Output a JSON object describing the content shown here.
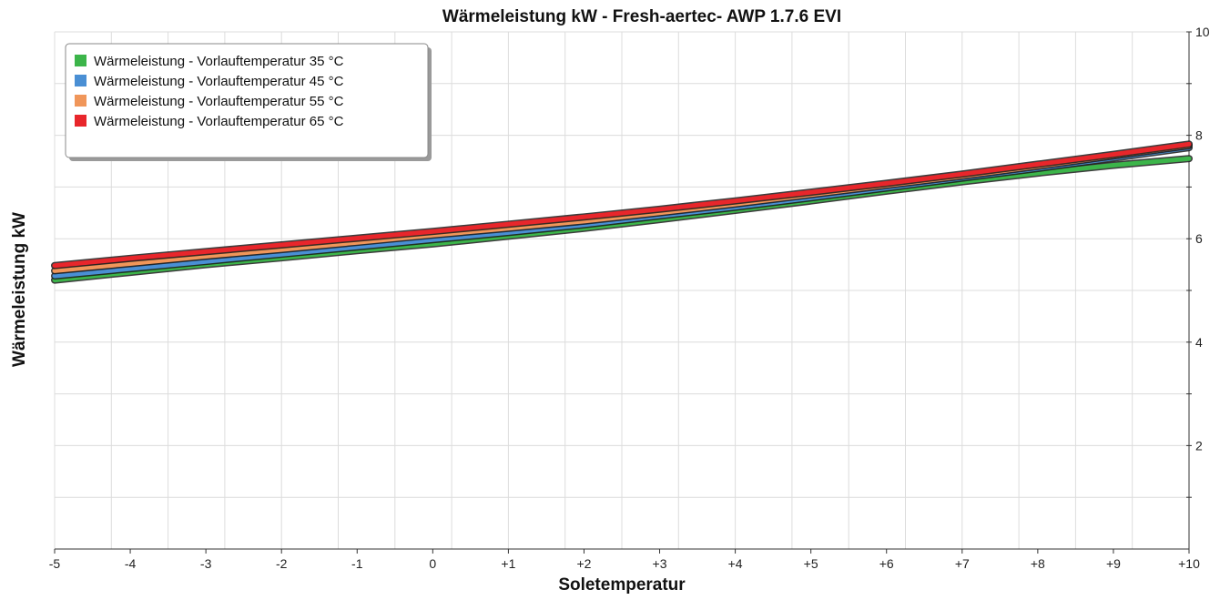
{
  "chart_data": {
    "type": "line",
    "title": "Wärmeleistung kW - Fresh-aertec- AWP 1.7.6 EVI",
    "xlabel": "Soletemperatur",
    "ylabel": "Wärmeleistung kW",
    "x": [
      -5,
      -4,
      -3,
      -2,
      -1,
      0,
      1,
      2,
      3,
      4,
      5,
      6,
      7,
      8,
      9,
      10
    ],
    "x_tick_labels": [
      "-5",
      "-4",
      "-3",
      "-2",
      "-1",
      "0",
      "+1",
      "+2",
      "+3",
      "+4",
      "+5",
      "+6",
      "+7",
      "+8",
      "+9",
      "+10"
    ],
    "xlim": [
      -5,
      10
    ],
    "ylim": [
      0,
      10
    ],
    "y_ticks": [
      2,
      4,
      6,
      8,
      10
    ],
    "y_tick_labels": [
      "2",
      "4",
      "6",
      "8",
      "10"
    ],
    "y_axis_side": "right",
    "grid": true,
    "legend_position": "top-left",
    "series": [
      {
        "name": "Wärmeleistung - Vorlauftemperatur 35 °C",
        "color": "#3cb54a",
        "values": [
          5.2,
          5.35,
          5.5,
          5.63,
          5.77,
          5.9,
          6.05,
          6.2,
          6.37,
          6.55,
          6.73,
          6.92,
          7.1,
          7.27,
          7.42,
          7.55
        ]
      },
      {
        "name": "Wärmeleistung - Vorlauftemperatur 45 °C",
        "color": "#4a8fd4",
        "values": [
          5.28,
          5.42,
          5.56,
          5.7,
          5.84,
          5.98,
          6.12,
          6.27,
          6.44,
          6.61,
          6.79,
          6.98,
          7.17,
          7.36,
          7.56,
          7.76
        ]
      },
      {
        "name": "Wärmeleistung - Vorlauftemperatur 55 °C",
        "color": "#f0965a",
        "values": [
          5.38,
          5.52,
          5.66,
          5.79,
          5.93,
          6.07,
          6.2,
          6.34,
          6.5,
          6.67,
          6.85,
          7.03,
          7.21,
          7.4,
          7.6,
          7.8
        ]
      },
      {
        "name": "Wärmeleistung - Vorlauftemperatur 65 °C",
        "color": "#e8262b",
        "values": [
          5.48,
          5.62,
          5.75,
          5.88,
          6.01,
          6.14,
          6.28,
          6.42,
          6.57,
          6.73,
          6.9,
          7.07,
          7.25,
          7.44,
          7.63,
          7.83
        ]
      }
    ]
  }
}
